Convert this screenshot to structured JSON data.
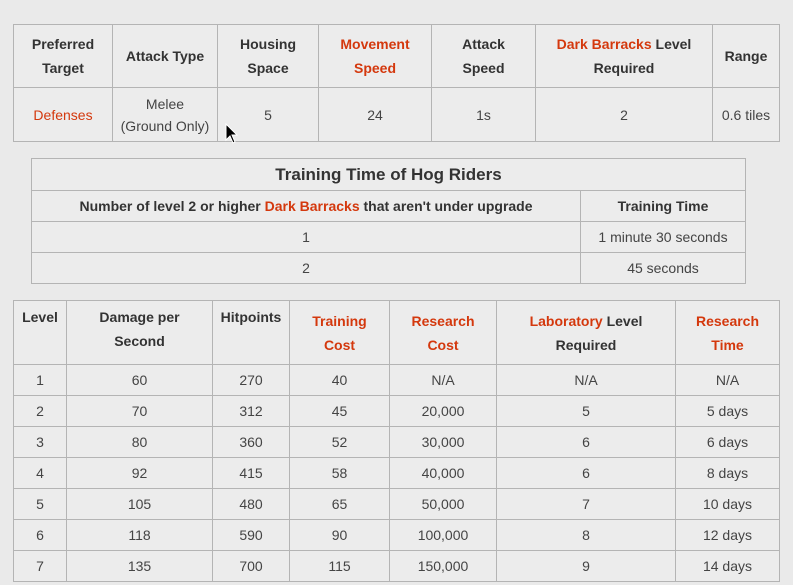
{
  "summary": {
    "headers": [
      {
        "lines": [
          "Preferred",
          "Target"
        ],
        "link": false
      },
      {
        "lines": [
          "Attack Type"
        ],
        "link": false
      },
      {
        "lines": [
          "Housing",
          "Space"
        ],
        "link": false
      },
      {
        "lines": [
          "Movement",
          "Speed"
        ],
        "link": true
      },
      {
        "lines": [
          "Attack",
          "Speed"
        ],
        "link": false
      }
    ],
    "dark_barracks_header": {
      "link": "Dark Barracks",
      "rest1": " Level",
      "rest2": "Required"
    },
    "range_header": "Range",
    "row": {
      "preferred_target": "Defenses",
      "attack_type_1": "Melee",
      "attack_type_2": "(Ground Only)",
      "housing_space": "5",
      "movement_speed": "24",
      "attack_speed": "1s",
      "dark_barracks_level": "2",
      "range": "0.6 tiles"
    }
  },
  "training": {
    "title": "Training Time of Hog Riders",
    "header_prefix": "Number of level 2 or higher ",
    "header_link": "Dark Barracks",
    "header_suffix": " that aren't under upgrade",
    "header_time": "Training Time",
    "rows": [
      {
        "count": "1",
        "time": "1 minute 30 seconds"
      },
      {
        "count": "2",
        "time": "45 seconds"
      }
    ]
  },
  "levels": {
    "headers": {
      "level": "Level",
      "dps_1": "Damage per",
      "dps_2": "Second",
      "hitpoints": "Hitpoints",
      "training_cost_1": "Training",
      "training_cost_2": "Cost",
      "research_cost_1": "Research",
      "research_cost_2": "Cost",
      "lab_link": "Laboratory",
      "lab_rest1": " Level",
      "lab_rest2": "Required",
      "research_time_1": "Research",
      "research_time_2": "Time"
    },
    "rows": [
      [
        "1",
        "60",
        "270",
        "40",
        "N/A",
        "N/A",
        "N/A"
      ],
      [
        "2",
        "70",
        "312",
        "45",
        "20,000",
        "5",
        "5 days"
      ],
      [
        "3",
        "80",
        "360",
        "52",
        "30,000",
        "6",
        "6 days"
      ],
      [
        "4",
        "92",
        "415",
        "58",
        "40,000",
        "6",
        "8 days"
      ],
      [
        "5",
        "105",
        "480",
        "65",
        "50,000",
        "7",
        "10 days"
      ],
      [
        "6",
        "118",
        "590",
        "90",
        "100,000",
        "8",
        "12 days"
      ],
      [
        "7",
        "135",
        "700",
        "115",
        "150,000",
        "9",
        "14 days"
      ]
    ]
  },
  "colors": {
    "link": "#d4380d",
    "border": "#b4b4b4",
    "background": "#eaeaea"
  },
  "icons": {
    "cursor": "mouse-pointer-icon"
  }
}
